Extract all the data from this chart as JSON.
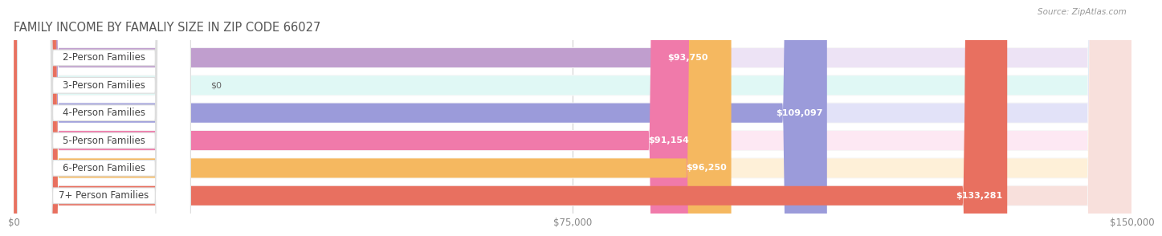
{
  "title": "FAMILY INCOME BY FAMALIY SIZE IN ZIP CODE 66027",
  "source": "Source: ZipAtlas.com",
  "categories": [
    "2-Person Families",
    "3-Person Families",
    "4-Person Families",
    "5-Person Families",
    "6-Person Families",
    "7+ Person Families"
  ],
  "values": [
    93750,
    0,
    109097,
    91154,
    96250,
    133281
  ],
  "value_labels": [
    "$93,750",
    "$0",
    "$109,097",
    "$91,154",
    "$96,250",
    "$133,281"
  ],
  "bar_colors": [
    "#c09ece",
    "#5ecfc5",
    "#9b9bda",
    "#f07aaa",
    "#f5b860",
    "#e87060"
  ],
  "bar_bg_colors": [
    "#ede3f5",
    "#e0f8f5",
    "#e2e2f8",
    "#fde8f3",
    "#fef0d8",
    "#f8e0dc"
  ],
  "xlim": [
    0,
    150000
  ],
  "xticks": [
    0,
    75000,
    150000
  ],
  "xticklabels": [
    "$0",
    "$75,000",
    "$150,000"
  ],
  "background_color": "#ffffff",
  "bar_row_bg": "#f7f7f7",
  "bar_height": 0.7,
  "title_fontsize": 10.5,
  "label_fontsize": 8.5,
  "value_fontsize": 8.0
}
